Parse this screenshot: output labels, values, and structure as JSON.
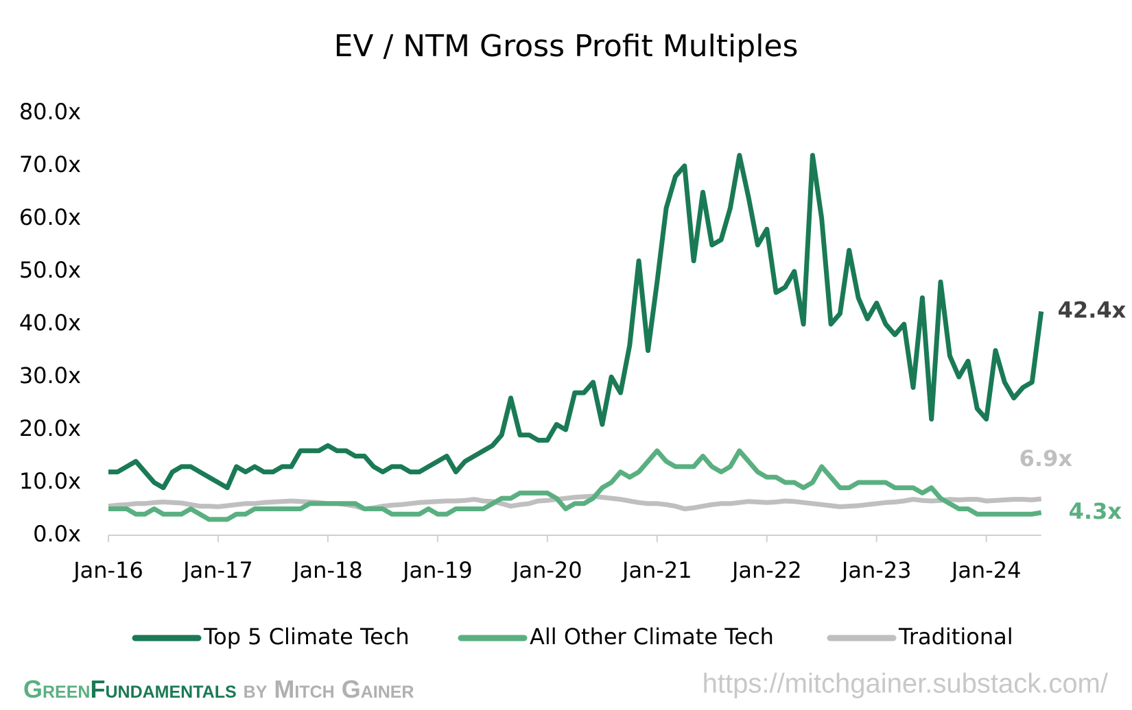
{
  "chart_data": {
    "type": "line",
    "title": "EV / NTM Gross Profit Multiples",
    "x": [
      "2016-01",
      "2016-02",
      "2016-03",
      "2016-04",
      "2016-05",
      "2016-06",
      "2016-07",
      "2016-08",
      "2016-09",
      "2016-10",
      "2016-11",
      "2016-12",
      "2017-01",
      "2017-02",
      "2017-03",
      "2017-04",
      "2017-05",
      "2017-06",
      "2017-07",
      "2017-08",
      "2017-09",
      "2017-10",
      "2017-11",
      "2017-12",
      "2018-01",
      "2018-02",
      "2018-03",
      "2018-04",
      "2018-05",
      "2018-06",
      "2018-07",
      "2018-08",
      "2018-09",
      "2018-10",
      "2018-11",
      "2018-12",
      "2019-01",
      "2019-02",
      "2019-03",
      "2019-04",
      "2019-05",
      "2019-06",
      "2019-07",
      "2019-08",
      "2019-09",
      "2019-10",
      "2019-11",
      "2019-12",
      "2020-01",
      "2020-02",
      "2020-03",
      "2020-04",
      "2020-05",
      "2020-06",
      "2020-07",
      "2020-08",
      "2020-09",
      "2020-10",
      "2020-11",
      "2020-12",
      "2021-01",
      "2021-02",
      "2021-03",
      "2021-04",
      "2021-05",
      "2021-06",
      "2021-07",
      "2021-08",
      "2021-09",
      "2021-10",
      "2021-11",
      "2021-12",
      "2022-01",
      "2022-02",
      "2022-03",
      "2022-04",
      "2022-05",
      "2022-06",
      "2022-07",
      "2022-08",
      "2022-09",
      "2022-10",
      "2022-11",
      "2022-12",
      "2023-01",
      "2023-02",
      "2023-03",
      "2023-04",
      "2023-05",
      "2023-06",
      "2023-07",
      "2023-08",
      "2023-09",
      "2023-10",
      "2023-11",
      "2023-12",
      "2024-01",
      "2024-02",
      "2024-03",
      "2024-04",
      "2024-05",
      "2024-06",
      "2024-07"
    ],
    "series": [
      {
        "name": "Top 5 Climate Tech",
        "color": "#1a7a55",
        "end_label": "42.4x",
        "values": [
          12,
          12,
          13,
          14,
          12,
          10,
          9,
          12,
          13,
          13,
          12,
          11,
          10,
          9,
          13,
          12,
          13,
          12,
          12,
          13,
          13,
          16,
          16,
          16,
          17,
          16,
          16,
          15,
          15,
          13,
          12,
          13,
          13,
          12,
          12,
          13,
          14,
          15,
          12,
          14,
          15,
          16,
          17,
          19,
          26,
          19,
          19,
          18,
          18,
          21,
          20,
          27,
          27,
          29,
          21,
          30,
          27,
          36,
          52,
          35,
          48,
          62,
          68,
          70,
          52,
          65,
          55,
          56,
          62,
          72,
          64,
          55,
          58,
          46,
          47,
          50,
          40,
          72,
          60,
          40,
          42,
          54,
          45,
          41,
          44,
          40,
          38,
          40,
          28,
          45,
          22,
          48,
          34,
          30,
          33,
          24,
          22,
          35,
          29,
          26,
          28,
          29,
          42.4
        ]
      },
      {
        "name": "All Other Climate Tech",
        "color": "#5aaf80",
        "end_label": "4.3x",
        "values": [
          5,
          5,
          5,
          4,
          4,
          5,
          4,
          4,
          4,
          5,
          4,
          3,
          3,
          3,
          4,
          4,
          5,
          5,
          5,
          5,
          5,
          5,
          6,
          6,
          6,
          6,
          6,
          6,
          5,
          5,
          5,
          4,
          4,
          4,
          4,
          5,
          4,
          4,
          5,
          5,
          5,
          5,
          6,
          7,
          7,
          8,
          8,
          8,
          8,
          7,
          5,
          6,
          6,
          7,
          9,
          10,
          12,
          11,
          12,
          14,
          16,
          14,
          13,
          13,
          13,
          15,
          13,
          12,
          13,
          16,
          14,
          12,
          11,
          11,
          10,
          10,
          9,
          10,
          13,
          11,
          9,
          9,
          10,
          10,
          10,
          10,
          9,
          9,
          9,
          8,
          9,
          7,
          6,
          5,
          5,
          4,
          4,
          4,
          4,
          4,
          4,
          4,
          4.3
        ]
      },
      {
        "name": "Traditional",
        "color": "#bfbfbf",
        "end_label": "6.9x",
        "values": [
          5.5,
          5.7,
          5.8,
          6,
          6,
          6.2,
          6.3,
          6.2,
          6.1,
          5.8,
          5.5,
          5.5,
          5.4,
          5.6,
          5.8,
          6,
          6,
          6.2,
          6.3,
          6.4,
          6.5,
          6.4,
          6.3,
          6.2,
          6,
          6,
          5.8,
          5.5,
          5,
          5.2,
          5.5,
          5.7,
          5.8,
          6,
          6.2,
          6.3,
          6.4,
          6.5,
          6.5,
          6.6,
          6.8,
          6.5,
          6.4,
          6,
          5.5,
          5.8,
          6,
          6.5,
          6.6,
          6.8,
          7,
          7.2,
          7.3,
          7.4,
          7.2,
          7,
          6.8,
          6.5,
          6.2,
          6,
          6,
          5.8,
          5.5,
          5,
          5.2,
          5.5,
          5.8,
          6,
          6,
          6.2,
          6.4,
          6.3,
          6.2,
          6.3,
          6.5,
          6.4,
          6.2,
          6,
          5.8,
          5.6,
          5.4,
          5.5,
          5.6,
          5.8,
          6,
          6.2,
          6.3,
          6.5,
          6.8,
          6.6,
          6.5,
          6.6,
          6.8,
          6.7,
          6.8,
          6.8,
          6.5,
          6.6,
          6.7,
          6.8,
          6.8,
          6.7,
          6.9
        ]
      }
    ],
    "ylim": [
      0,
      80
    ],
    "yticks": [
      {
        "value": 0,
        "label": "0.0x"
      },
      {
        "value": 10,
        "label": "10.0x"
      },
      {
        "value": 20,
        "label": "20.0x"
      },
      {
        "value": 30,
        "label": "30.0x"
      },
      {
        "value": 40,
        "label": "40.0x"
      },
      {
        "value": 50,
        "label": "50.0x"
      },
      {
        "value": 60,
        "label": "60.0x"
      },
      {
        "value": 70,
        "label": "70.0x"
      },
      {
        "value": 80,
        "label": "80.0x"
      }
    ],
    "xticks": [
      {
        "value": "2016-01",
        "label": "Jan-16"
      },
      {
        "value": "2017-01",
        "label": "Jan-17"
      },
      {
        "value": "2018-01",
        "label": "Jan-18"
      },
      {
        "value": "2019-01",
        "label": "Jan-19"
      },
      {
        "value": "2020-01",
        "label": "Jan-20"
      },
      {
        "value": "2021-01",
        "label": "Jan-21"
      },
      {
        "value": "2022-01",
        "label": "Jan-22"
      },
      {
        "value": "2023-01",
        "label": "Jan-23"
      },
      {
        "value": "2024-01",
        "label": "Jan-24"
      }
    ],
    "grid": false,
    "legend": "bottom"
  },
  "footer": {
    "brand_light": "Green",
    "brand_dark": "Fundamentals",
    "brand_by": "by Mitch Gainer",
    "url": "https://mitchgainer.substack.com/"
  }
}
